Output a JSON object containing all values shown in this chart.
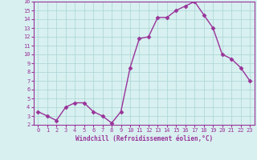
{
  "x": [
    0,
    1,
    2,
    3,
    4,
    5,
    6,
    7,
    8,
    9,
    10,
    11,
    12,
    13,
    14,
    15,
    16,
    17,
    18,
    19,
    20,
    21,
    22,
    23
  ],
  "y": [
    3.5,
    3.0,
    2.5,
    4.0,
    4.5,
    4.5,
    3.5,
    3.0,
    2.2,
    3.5,
    8.5,
    11.8,
    12.0,
    14.2,
    14.2,
    15.0,
    15.5,
    16.0,
    14.5,
    13.0,
    10.0,
    9.5,
    8.5,
    7.0
  ],
  "line_color": "#993399",
  "marker": "D",
  "marker_size": 2.5,
  "bg_color": "#d8f0f0",
  "grid_color": "#aad4d4",
  "xlabel": "Windchill (Refroidissement éolien,°C)",
  "xlim": [
    -0.5,
    23.5
  ],
  "ylim": [
    2,
    16
  ],
  "yticks": [
    2,
    3,
    4,
    5,
    6,
    7,
    8,
    9,
    10,
    11,
    12,
    13,
    14,
    15,
    16
  ],
  "xticks": [
    0,
    1,
    2,
    3,
    4,
    5,
    6,
    7,
    8,
    9,
    10,
    11,
    12,
    13,
    14,
    15,
    16,
    17,
    18,
    19,
    20,
    21,
    22,
    23
  ],
  "tick_color": "#993399",
  "label_color": "#993399",
  "spine_color": "#993399"
}
